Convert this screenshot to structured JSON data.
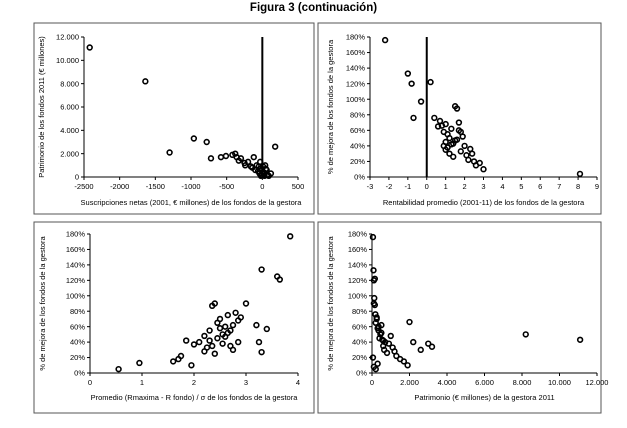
{
  "figure": {
    "title": "Figura 3 (continuación)"
  },
  "chart_data": [
    {
      "type": "scatter",
      "title": "",
      "xlabel": "Suscripciones netas (2001, € millones) de los fondos de la gestora",
      "ylabel": "Patrimonio de los fondos 2011 (€ millones)",
      "xlim": [
        -2500,
        500
      ],
      "ylim": [
        0,
        12000
      ],
      "x_ticks": [
        -2500,
        -2000,
        -1500,
        -1000,
        -500,
        0,
        500
      ],
      "x_tick_labels": [
        "-2500",
        "-2000",
        "-1500",
        "-1000",
        "-500",
        "0",
        "500"
      ],
      "y_ticks": [
        0,
        2000,
        4000,
        6000,
        8000,
        10000,
        12000
      ],
      "y_tick_labels": [
        "0",
        "2.000",
        "4.000",
        "6.000",
        "8.000",
        "10.000",
        "12.000"
      ],
      "vline_x": 0,
      "grid": false,
      "x": [
        -2420,
        -1640,
        -1300,
        -960,
        -780,
        -720,
        -580,
        -510,
        -420,
        -380,
        -360,
        -330,
        -300,
        -250,
        -240,
        -200,
        -160,
        -140,
        -120,
        -100,
        -80,
        -60,
        -50,
        -40,
        -30,
        -20,
        -10,
        10,
        20,
        30,
        40,
        60,
        70,
        90,
        120,
        180,
        30,
        0,
        -20,
        50
      ],
      "y": [
        11100,
        8200,
        2100,
        3300,
        3000,
        1600,
        1700,
        1800,
        1900,
        2000,
        1700,
        1400,
        1600,
        1200,
        1000,
        1300,
        900,
        800,
        1700,
        600,
        1000,
        500,
        900,
        300,
        1300,
        700,
        200,
        900,
        400,
        300,
        1000,
        600,
        200,
        100,
        300,
        2600,
        100,
        400,
        100,
        700
      ]
    },
    {
      "type": "scatter",
      "title": "",
      "xlabel": "Rentabilidad promedio (2001-11) de los fondos de la gestora",
      "ylabel": "% de mejora de los fondos de la gestora",
      "xlim": [
        -3,
        9
      ],
      "ylim": [
        0,
        180
      ],
      "x_ticks": [
        -3,
        -2,
        -1,
        0,
        1,
        2,
        3,
        4,
        5,
        6,
        7,
        8,
        9
      ],
      "x_tick_labels": [
        "-3",
        "-2",
        "-1",
        "0",
        "1",
        "2",
        "3",
        "4",
        "5",
        "6",
        "7",
        "8",
        "9"
      ],
      "y_ticks": [
        0,
        20,
        40,
        60,
        80,
        100,
        120,
        140,
        160,
        180
      ],
      "y_tick_labels": [
        "0%",
        "20%",
        "40%",
        "60%",
        "80%",
        "100%",
        "120%",
        "140%",
        "160%",
        "180%"
      ],
      "vline_x": 0,
      "grid": false,
      "x": [
        -2.2,
        -1.0,
        -0.8,
        -0.3,
        0.2,
        0.4,
        -0.7,
        0.6,
        0.7,
        0.8,
        0.9,
        1.0,
        1.0,
        1.1,
        1.2,
        1.3,
        1.4,
        1.5,
        1.6,
        1.7,
        1.8,
        0.9,
        1.0,
        1.2,
        1.4,
        1.6,
        1.1,
        1.3,
        1.5,
        1.8,
        2.0,
        2.1,
        2.2,
        2.4,
        2.5,
        2.6,
        2.8,
        3.0,
        1.9,
        2.3,
        1.7,
        8.1
      ],
      "y": [
        176,
        133,
        120,
        97,
        122,
        76,
        76,
        65,
        72,
        66,
        58,
        68,
        45,
        55,
        50,
        62,
        43,
        91,
        88,
        60,
        58,
        40,
        35,
        30,
        26,
        48,
        38,
        42,
        47,
        33,
        40,
        28,
        22,
        30,
        20,
        15,
        18,
        10,
        52,
        36,
        70,
        4
      ]
    },
    {
      "type": "scatter",
      "title": "",
      "xlabel": "Promedio (Rmaxima - R fondo) / σ de los fondos de la gestora",
      "ylabel": "% de mejora de los fondos de la gestora",
      "xlim": [
        0,
        4
      ],
      "ylim": [
        0,
        180
      ],
      "x_ticks": [
        0,
        1,
        2,
        3,
        4
      ],
      "x_tick_labels": [
        "0",
        "1",
        "2",
        "3",
        "4"
      ],
      "y_ticks": [
        0,
        20,
        40,
        60,
        80,
        100,
        120,
        140,
        160,
        180
      ],
      "y_tick_labels": [
        "0%",
        "20%",
        "40%",
        "60%",
        "80%",
        "100%",
        "120%",
        "140%",
        "160%",
        "180%"
      ],
      "vline_x": null,
      "grid": false,
      "x": [
        0.55,
        0.95,
        1.6,
        1.7,
        1.75,
        1.85,
        1.95,
        2.0,
        2.1,
        2.2,
        2.25,
        2.3,
        2.35,
        2.4,
        2.45,
        2.5,
        2.55,
        2.6,
        2.65,
        2.7,
        2.75,
        2.8,
        2.85,
        2.9,
        2.35,
        2.45,
        2.55,
        2.65,
        2.75,
        2.85,
        2.4,
        2.5,
        2.6,
        2.7,
        2.2,
        2.3,
        3.0,
        3.2,
        3.25,
        3.3,
        3.3,
        3.4,
        3.6,
        3.65,
        3.85
      ],
      "y": [
        5,
        13,
        15,
        18,
        22,
        42,
        10,
        37,
        40,
        28,
        33,
        42,
        87,
        90,
        65,
        70,
        50,
        60,
        75,
        55,
        62,
        78,
        68,
        72,
        35,
        45,
        38,
        52,
        30,
        40,
        25,
        58,
        47,
        35,
        48,
        55,
        90,
        62,
        40,
        27,
        134,
        57,
        125,
        121,
        177
      ]
    },
    {
      "type": "scatter",
      "title": "",
      "xlabel": "Patrimonio (€ millones) de la gestora 2011",
      "ylabel": "% de mejora de los fondos de la gestora",
      "xlim": [
        0,
        12000
      ],
      "ylim": [
        0,
        180
      ],
      "x_ticks": [
        0,
        2000,
        4000,
        6000,
        8000,
        10000,
        12000
      ],
      "x_tick_labels": [
        "0",
        "2.000",
        "4.000",
        "6.000",
        "8.000",
        "10.000",
        "12.000"
      ],
      "y_ticks": [
        0,
        20,
        40,
        60,
        80,
        100,
        120,
        140,
        160,
        180
      ],
      "y_tick_labels": [
        "0%",
        "20%",
        "40%",
        "60%",
        "80%",
        "100%",
        "120%",
        "140%",
        "160%",
        "180%"
      ],
      "vline_x": null,
      "grid": false,
      "x": [
        50,
        80,
        100,
        120,
        150,
        180,
        200,
        250,
        300,
        350,
        400,
        450,
        500,
        550,
        600,
        650,
        700,
        800,
        900,
        1000,
        1100,
        1200,
        1300,
        1500,
        1700,
        1900,
        2000,
        2200,
        2600,
        3000,
        3200,
        100,
        150,
        250,
        350,
        500,
        600,
        50,
        100,
        200,
        300,
        8200,
        11100
      ],
      "y": [
        176,
        133,
        120,
        97,
        122,
        76,
        65,
        72,
        58,
        55,
        45,
        50,
        62,
        43,
        35,
        30,
        40,
        26,
        38,
        48,
        33,
        28,
        22,
        18,
        15,
        10,
        66,
        40,
        30,
        38,
        34,
        90,
        88,
        70,
        60,
        52,
        42,
        20,
        8,
        5,
        12,
        50,
        43
      ]
    }
  ]
}
